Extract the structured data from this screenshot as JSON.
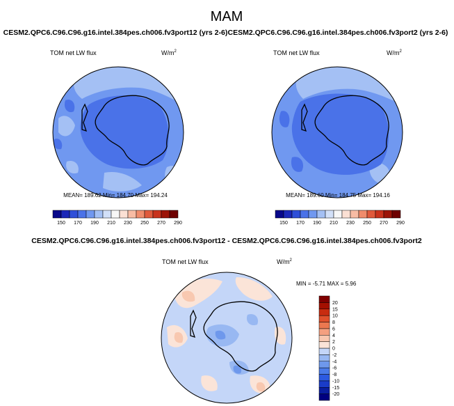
{
  "figure": {
    "title": "MAM"
  },
  "panels": [
    {
      "id": "left",
      "case_title": "CESM2.QPC6.C96.C96.g16.intel.384pes.ch006.fv3port12 (yrs 2-6)",
      "variable": "TOM net LW flux",
      "units_base": "W/m",
      "units_exp": "2",
      "stats": "MEAN= 189.62  Min= 184.70  Max= 194.24"
    },
    {
      "id": "right",
      "case_title": "CESM2.QPC6.C96.C96.g16.intel.384pes.ch006.fv3port2 (yrs 2-6)",
      "variable": "TOM net LW flux",
      "units_base": "W/m",
      "units_exp": "2",
      "stats": "MEAN= 189.60  Min= 184.75  Max= 194.16"
    }
  ],
  "diff_panel": {
    "title": "CESM2.QPC6.C96.C96.g16.intel.384pes.ch006.fv3port12 - CESM2.QPC6.C96.C96.g16.intel.384pes.ch006.fv3port2",
    "variable": "TOM net LW flux",
    "units_base": "W/m",
    "units_exp": "2",
    "stats": "MIN = -5.71  MAX =  5.96"
  },
  "chart_data": [
    {
      "type": "heatmap",
      "projection": "south-polar-stereographic",
      "variable": "TOM net LW flux",
      "units": "W/m2",
      "colorbar": {
        "orientation": "horizontal",
        "levels": [
          150,
          170,
          190,
          210,
          230,
          250,
          270,
          290
        ],
        "colors": [
          "#08088a",
          "#1c28b8",
          "#2f4fd8",
          "#4a72e8",
          "#7098f0",
          "#a4c0f4",
          "#d2e0f8",
          "#f7f7f7",
          "#fbe0d4",
          "#f8bca4",
          "#f08c6c",
          "#e05a3c",
          "#c8321c",
          "#9c1408",
          "#6e0000"
        ]
      },
      "mean": 189.62,
      "min": 184.7,
      "max": 194.24
    },
    {
      "type": "heatmap",
      "projection": "south-polar-stereographic",
      "variable": "TOM net LW flux",
      "units": "W/m2",
      "colorbar": {
        "orientation": "horizontal",
        "levels": [
          150,
          170,
          190,
          210,
          230,
          250,
          270,
          290
        ],
        "colors": [
          "#08088a",
          "#1c28b8",
          "#2f4fd8",
          "#4a72e8",
          "#7098f0",
          "#a4c0f4",
          "#d2e0f8",
          "#f7f7f7",
          "#fbe0d4",
          "#f8bca4",
          "#f08c6c",
          "#e05a3c",
          "#c8321c",
          "#9c1408",
          "#6e0000"
        ]
      },
      "mean": 189.6,
      "min": 184.75,
      "max": 194.16
    },
    {
      "type": "heatmap",
      "projection": "south-polar-stereographic",
      "variable": "TOM net LW flux difference",
      "units": "W/m2",
      "colorbar": {
        "orientation": "vertical",
        "levels": [
          -20,
          -15,
          -10,
          -8,
          -6,
          -4,
          -2,
          0,
          2,
          4,
          6,
          8,
          10,
          15,
          20
        ],
        "colors": [
          "#000080",
          "#0a1ea0",
          "#1a3cc8",
          "#2c5ae0",
          "#4a7ae8",
          "#6e98ec",
          "#98b8f2",
          "#c4d6f8",
          "#fbe4d8",
          "#f8c8b0",
          "#f4a080",
          "#ec7850",
          "#e0502c",
          "#c82c10",
          "#a41000",
          "#800000"
        ]
      },
      "min": -5.71,
      "max": 5.96
    }
  ]
}
